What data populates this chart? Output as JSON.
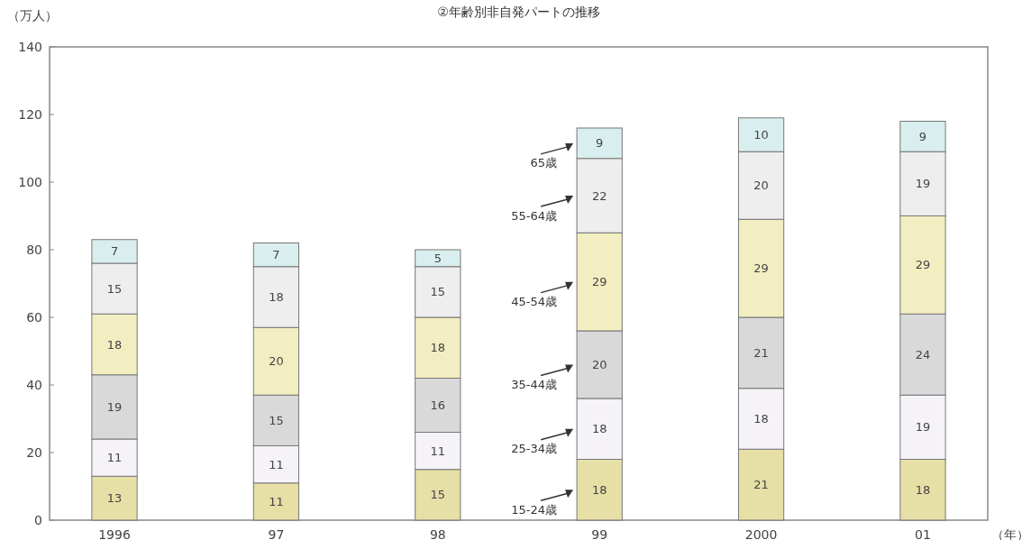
{
  "chart_data": {
    "type": "bar",
    "title": "②年齢別非自発パートの推移",
    "ylabel": "（万人）",
    "xlabel": "（年）",
    "categories": [
      "1996",
      "97",
      "98",
      "99",
      "2000",
      "01"
    ],
    "stacked": true,
    "data_labels": true,
    "grid": false,
    "ylim": [
      0,
      140
    ],
    "yticks": [
      0,
      20,
      40,
      60,
      80,
      100,
      120,
      140
    ],
    "series": [
      {
        "name": "15-24歳",
        "color": "#e6dfa6",
        "values": [
          13,
          11,
          15,
          18,
          21,
          18
        ]
      },
      {
        "name": "25-34歳",
        "color": "#f6f3f8",
        "values": [
          11,
          11,
          11,
          18,
          18,
          19
        ]
      },
      {
        "name": "35-44歳",
        "color": "#d9d9d9",
        "values": [
          19,
          15,
          16,
          20,
          21,
          24
        ]
      },
      {
        "name": "45-54歳",
        "color": "#f3eec2",
        "values": [
          18,
          20,
          18,
          29,
          29,
          29
        ]
      },
      {
        "name": "55-64歳",
        "color": "#eeeeee",
        "values": [
          15,
          18,
          15,
          22,
          20,
          19
        ]
      },
      {
        "name": "65歳",
        "color": "#d9eeee",
        "values": [
          7,
          7,
          5,
          9,
          10,
          9
        ]
      }
    ]
  }
}
